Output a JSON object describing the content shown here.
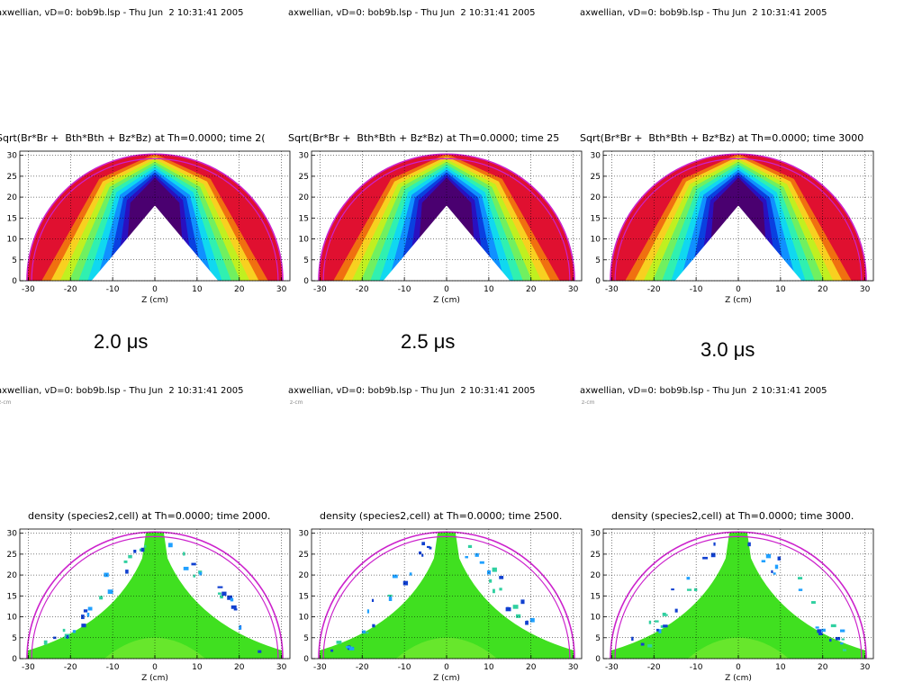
{
  "chart_data": [
    {
      "type": "heatmap",
      "header": "axwellian, vD=0: bob9b.lsp - Thu Jun  2 10:31:41 2005",
      "title": "Sqrt(Br*Br +  Bth*Bth + Bz*Bz) at Th=0.0000; time 2(",
      "xlabel": "Z (cm)",
      "xlim": [
        -32,
        32
      ],
      "ylim": [
        0,
        31
      ],
      "xticks": [
        -30,
        -20,
        -10,
        0,
        10,
        20,
        30
      ],
      "yticks": [
        0,
        5,
        10,
        15,
        20,
        25,
        30
      ],
      "grid": true,
      "caption": "2.0 μs"
    },
    {
      "type": "heatmap",
      "header": "axwellian, vD=0: bob9b.lsp - Thu Jun  2 10:31:41 2005",
      "title": "Sqrt(Br*Br +  Bth*Bth + Bz*Bz) at Th=0.0000; time 25",
      "xlabel": "Z (cm)",
      "xlim": [
        -32,
        32
      ],
      "ylim": [
        0,
        31
      ],
      "xticks": [
        -30,
        -20,
        -10,
        0,
        10,
        20,
        30
      ],
      "yticks": [
        0,
        5,
        10,
        15,
        20,
        25,
        30
      ],
      "grid": true,
      "caption": "2.5 μs"
    },
    {
      "type": "heatmap",
      "header": "axwellian, vD=0: bob9b.lsp - Thu Jun  2 10:31:41 2005",
      "title": "Sqrt(Br*Br +  Bth*Bth + Bz*Bz) at Th=0.0000; time 3000",
      "xlabel": "Z (cm)",
      "xlim": [
        -32,
        32
      ],
      "ylim": [
        0,
        31
      ],
      "xticks": [
        -30,
        -20,
        -10,
        0,
        10,
        20,
        30
      ],
      "yticks": [
        0,
        5,
        10,
        15,
        20,
        25,
        30
      ],
      "grid": true,
      "caption": "3.0 μs"
    },
    {
      "type": "heatmap",
      "header": "axwellian, vD=0: bob9b.lsp - Thu Jun  2 10:31:41 2005",
      "subheader": "z-cm",
      "title": "density (species2,cell) at Th=0.0000; time 2000.",
      "xlabel": "Z (cm)",
      "xlim": [
        -32,
        32
      ],
      "ylim": [
        0,
        31
      ],
      "xticks": [
        -30,
        -20,
        -10,
        0,
        10,
        20,
        30
      ],
      "yticks": [
        0,
        5,
        10,
        15,
        20,
        25,
        30
      ],
      "grid": true
    },
    {
      "type": "heatmap",
      "header": "axwellian, vD=0: bob9b.lsp - Thu Jun  2 10:31:41 2005",
      "subheader": "z-cm",
      "title": "density (species2,cell) at Th=0.0000; time 2500.",
      "xlabel": "Z (cm)",
      "xlim": [
        -32,
        32
      ],
      "ylim": [
        0,
        31
      ],
      "xticks": [
        -30,
        -20,
        -10,
        0,
        10,
        20,
        30
      ],
      "yticks": [
        0,
        5,
        10,
        15,
        20,
        25,
        30
      ],
      "grid": true
    },
    {
      "type": "heatmap",
      "header": "axwellian, vD=0: bob9b.lsp - Thu Jun  2 10:31:41 2005",
      "subheader": "z-cm",
      "title": "density (species2,cell) at Th=0.0000; time 3000.",
      "xlabel": "Z (cm)",
      "xlim": [
        -32,
        32
      ],
      "ylim": [
        0,
        31
      ],
      "xticks": [
        -30,
        -20,
        -10,
        0,
        10,
        20,
        30
      ],
      "yticks": [
        0,
        5,
        10,
        15,
        20,
        25,
        30
      ],
      "grid": true
    }
  ],
  "colors": {
    "boundary": "#cc22cc",
    "field_bands": [
      "#4a0070",
      "#2a10c0",
      "#0a40e0",
      "#1090ff",
      "#10d8f0",
      "#30f0b0",
      "#70f060",
      "#c0f020",
      "#f8d020",
      "#f07010",
      "#e01030"
    ],
    "density": [
      "#40e020",
      "#70e830",
      "#30d0a0",
      "#20a0ff",
      "#1040d0",
      "#e8e820"
    ]
  }
}
